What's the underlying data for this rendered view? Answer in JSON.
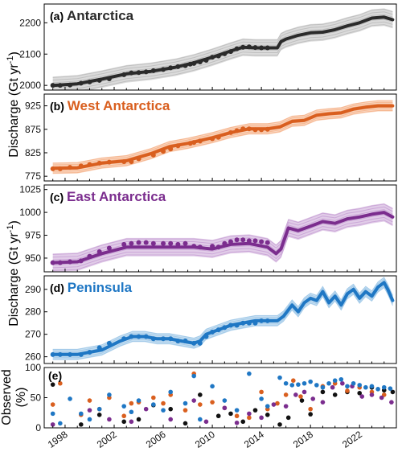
{
  "chart_data": {
    "type": "line",
    "xlim": [
      1996.3,
      2025.0
    ],
    "x_ticks": [
      "1998",
      "2002",
      "2006",
      "2010",
      "2014",
      "2018",
      "2022"
    ],
    "shared_ylabels": [
      {
        "main": "Discharge (Gt yr",
        "sup": "-1",
        "close": ")"
      },
      {
        "main": "Discharge (Gt yr",
        "sup": "-1",
        "close": ")"
      }
    ],
    "panels": [
      {
        "letter": "(a)",
        "title": "Antarctica",
        "color": "#2b2b2b",
        "band_color": "#bdbdbd",
        "ylim": [
          1985,
          2260
        ],
        "yticks": [
          2000,
          2100,
          2200
        ],
        "line": {
          "x": [
            1997.0,
            1999.0,
            2001.0,
            2003.0,
            2005.0,
            2007.0,
            2008.5,
            2010.0,
            2011.5,
            2012.5,
            2013.5,
            2014.5,
            2015.3,
            2015.6,
            2016.0,
            2017.0,
            2018.0,
            2019.0,
            2020.0,
            2021.0,
            2022.0,
            2023.0,
            2024.0,
            2024.7
          ],
          "y": [
            2000,
            2005,
            2020,
            2037,
            2045,
            2058,
            2072,
            2090,
            2110,
            2122,
            2120,
            2120,
            2120,
            2140,
            2148,
            2160,
            2168,
            2170,
            2178,
            2190,
            2200,
            2215,
            2218,
            2210
          ]
        },
        "band_halfwidth": 28,
        "points": {
          "x": [
            1997.0,
            1997.6,
            1998.4,
            1999.3,
            2000.0,
            2000.8,
            2001.6,
            2002.8,
            2003.4,
            2004.0,
            2004.6,
            2005.2,
            2006.0,
            2006.6,
            2007.2,
            2007.8,
            2008.2,
            2008.5,
            2009.0,
            2009.5,
            2010.0,
            2010.5,
            2011.0,
            2011.5,
            2012.0,
            2012.5,
            2013.0,
            2013.5,
            2014.0,
            2014.5
          ],
          "y": [
            2000,
            2000,
            2001,
            2007,
            2011,
            2016,
            2021,
            2034,
            2040,
            2041,
            2043,
            2047,
            2051,
            2056,
            2060,
            2063,
            2068,
            2070,
            2075,
            2080,
            2090,
            2094,
            2101,
            2108,
            2117,
            2122,
            2123,
            2121,
            2120,
            2120
          ]
        }
      },
      {
        "letter": "(b)",
        "title": "West Antarctica",
        "color": "#d95f1f",
        "band_color": "#f5b48c",
        "ylim": [
          765,
          950
        ],
        "yticks": [
          775,
          825,
          875,
          925
        ],
        "line": {
          "x": [
            1997.0,
            1999.0,
            2001.0,
            2003.0,
            2005.0,
            2006.5,
            2008.0,
            2010.0,
            2011.5,
            2013.0,
            2014.5,
            2015.5,
            2016.5,
            2017.5,
            2018.5,
            2019.5,
            2020.5,
            2021.5,
            2022.5,
            2023.5,
            2024.7
          ],
          "y": [
            792,
            793,
            803,
            808,
            823,
            838,
            845,
            857,
            868,
            876,
            876,
            880,
            892,
            894,
            905,
            908,
            910,
            918,
            922,
            925,
            925
          ]
        },
        "band_halfwidth": 12,
        "points": {
          "x": [
            1997.0,
            1997.6,
            1998.4,
            1999.3,
            2000.0,
            2000.8,
            2001.6,
            2002.8,
            2003.4,
            2004.0,
            2005.2,
            2006.0,
            2006.6,
            2007.2,
            2008.2,
            2008.5,
            2009.0,
            2010.0,
            2010.5,
            2011.5,
            2012.0,
            2012.5,
            2013.0,
            2013.5,
            2014.0,
            2014.5
          ],
          "y": [
            791,
            791,
            794,
            797,
            800,
            803,
            805,
            806,
            806,
            812,
            820,
            828,
            833,
            840,
            845,
            847,
            850,
            855,
            858,
            868,
            872,
            876,
            876,
            874,
            874,
            875
          ]
        }
      },
      {
        "letter": "(c)",
        "title": "East Antarctica",
        "color": "#7b2d8e",
        "band_color": "#c9a3d6",
        "ylim": [
          935,
          1030
        ],
        "yticks": [
          950,
          975,
          1000,
          1025
        ],
        "line": {
          "x": [
            1997.0,
            1999.0,
            2001.0,
            2003.0,
            2005.0,
            2007.0,
            2008.5,
            2010.0,
            2011.5,
            2013.0,
            2014.5,
            2015.2,
            2015.6,
            2016.2,
            2017.0,
            2018.0,
            2019.0,
            2020.0,
            2021.0,
            2022.0,
            2023.0,
            2024.0,
            2024.7
          ],
          "y": [
            945,
            946,
            955,
            962,
            962,
            962,
            962,
            960,
            965,
            966,
            962,
            955,
            960,
            983,
            980,
            985,
            990,
            988,
            993,
            995,
            998,
            1000,
            995
          ]
        },
        "band_halfwidth": 10,
        "points": {
          "x": [
            1997.0,
            1997.6,
            1998.4,
            1999.3,
            2000.0,
            2000.8,
            2001.6,
            2002.8,
            2003.4,
            2004.0,
            2004.6,
            2005.2,
            2006.0,
            2006.6,
            2007.2,
            2007.8,
            2008.5,
            2009.0,
            2010.0,
            2010.5,
            2011.0,
            2011.5,
            2012.0,
            2012.5,
            2013.0,
            2013.5,
            2014.0,
            2014.5
          ],
          "y": [
            945,
            945,
            946,
            947,
            952,
            957,
            961,
            965,
            966,
            967,
            967,
            966,
            966,
            966,
            965,
            966,
            963,
            962,
            963,
            962,
            966,
            968,
            970,
            970,
            969,
            969,
            968,
            967
          ]
        }
      },
      {
        "letter": "(d)",
        "title": "Peninsula",
        "color": "#1f77c4",
        "band_color": "#9fc8e8",
        "ylim": [
          257,
          296
        ],
        "yticks": [
          260,
          270,
          280,
          290
        ],
        "line": {
          "x": [
            1997.0,
            1999.0,
            2001.0,
            2002.5,
            2003.5,
            2004.5,
            2005.5,
            2006.5,
            2007.5,
            2008.5,
            2009.0,
            2009.5,
            2010.5,
            2011.5,
            2012.5,
            2013.5,
            2014.5,
            2015.3,
            2015.8,
            2016.5,
            2017.0,
            2017.5,
            2018.0,
            2018.5,
            2019.0,
            2019.5,
            2020.0,
            2020.5,
            2021.0,
            2021.5,
            2022.0,
            2022.5,
            2023.0,
            2023.5,
            2024.0,
            2024.3,
            2024.7
          ],
          "y": [
            261,
            261,
            263,
            267,
            269,
            269,
            268,
            268,
            267,
            266,
            267,
            270,
            272,
            274,
            275,
            276,
            276,
            276,
            278,
            283,
            280,
            284,
            286,
            285,
            289,
            284,
            287,
            283,
            288,
            290,
            286,
            289,
            287,
            291,
            293,
            290,
            285
          ]
        },
        "band_halfwidth": 2.5,
        "points": {
          "x": [
            1997.0,
            1997.6,
            1998.4,
            1999.3,
            2000.0,
            2000.8,
            2001.6,
            2002.8,
            2003.4,
            2004.0,
            2004.6,
            2005.2,
            2006.0,
            2006.6,
            2007.2,
            2007.8,
            2008.5,
            2009.0,
            2009.5,
            2010.0,
            2010.5,
            2011.0,
            2011.5,
            2012.0,
            2012.5,
            2013.0,
            2013.5,
            2014.0,
            2014.5
          ],
          "y": [
            261,
            261,
            261,
            261,
            262,
            264,
            266,
            268,
            269,
            269,
            269,
            268,
            268,
            268,
            267,
            267,
            266,
            266,
            269,
            271,
            272,
            273,
            274,
            274,
            275,
            275,
            275,
            276,
            276
          ]
        }
      }
    ],
    "observed_panel": {
      "letter": "(e)",
      "ylabel": [
        "Observed",
        "(%)"
      ],
      "ylim": [
        0,
        100
      ],
      "yticks": [
        0,
        50,
        100
      ],
      "series": [
        {
          "name": "Antarctica",
          "color": "#111111",
          "x": [
            1997.0,
            1999.3,
            2000.8,
            2002.8,
            2004.0,
            2005.2,
            2006.6,
            2007.8,
            2009.0,
            2010.5,
            2011.5,
            2012.5,
            2013.5,
            2014.5,
            2015.5,
            2016.2,
            2017.3,
            2018.0,
            2019.0,
            2020.0,
            2021.0,
            2022.0,
            2023.0,
            2024.0,
            2024.7
          ],
          "y": [
            73,
            3,
            20,
            8,
            12,
            37,
            30,
            5,
            55,
            18,
            22,
            8,
            28,
            20,
            3,
            15,
            45,
            21,
            60,
            55,
            60,
            58,
            68,
            63,
            60
          ]
        },
        {
          "name": "West Antarctica",
          "color": "#d95f1f",
          "x": [
            1997.0,
            1997.6,
            1999.3,
            2000.0,
            2000.8,
            2001.6,
            2002.8,
            2003.4,
            2004.0,
            2005.2,
            2006.0,
            2006.6,
            2007.8,
            2008.5,
            2009.0,
            2010.0,
            2011.0,
            2012.0,
            2013.0,
            2014.0,
            2014.5,
            2015.3,
            2016.0,
            2016.6,
            2017.2,
            2018.0,
            2019.0,
            2020.0,
            2021.0,
            2022.0,
            2023.0,
            2024.0
          ],
          "y": [
            38,
            75,
            20,
            45,
            30,
            50,
            18,
            40,
            42,
            50,
            40,
            55,
            28,
            92,
            38,
            42,
            32,
            18,
            15,
            60,
            30,
            40,
            55,
            80,
            52,
            30,
            70,
            75,
            62,
            68,
            60,
            55
          ]
        },
        {
          "name": "East Antarctica",
          "color": "#7b2d8e",
          "x": [
            1997.0,
            2000.0,
            2001.6,
            2003.4,
            2004.6,
            2006.6,
            2008.5,
            2009.5,
            2011.0,
            2012.0,
            2013.0,
            2014.0,
            2015.0,
            2016.0,
            2016.8,
            2017.5,
            2018.2,
            2019.0,
            2019.8,
            2020.6,
            2021.4,
            2022.2,
            2023.0,
            2023.8,
            2024.6
          ],
          "y": [
            3,
            28,
            12,
            8,
            30,
            12,
            45,
            8,
            32,
            6,
            22,
            15,
            38,
            35,
            55,
            60,
            48,
            42,
            68,
            75,
            70,
            52,
            55,
            50,
            42
          ]
        },
        {
          "name": "Peninsula",
          "color": "#1f77c4",
          "x": [
            1997.0,
            1997.6,
            1998.4,
            1999.3,
            2000.0,
            2000.8,
            2001.6,
            2002.8,
            2003.4,
            2004.0,
            2005.2,
            2006.0,
            2006.6,
            2007.8,
            2008.5,
            2009.0,
            2010.0,
            2011.0,
            2012.0,
            2013.0,
            2014.0,
            2014.5,
            2015.5,
            2016.0,
            2016.5,
            2017.0,
            2017.5,
            2018.0,
            2018.5,
            2019.0,
            2019.5,
            2020.0,
            2020.5,
            2021.0,
            2021.5,
            2022.0,
            2022.5,
            2023.0,
            2023.5,
            2024.0,
            2024.5
          ],
          "y": [
            22,
            5,
            48,
            22,
            12,
            30,
            55,
            35,
            25,
            45,
            38,
            28,
            60,
            40,
            88,
            12,
            70,
            45,
            28,
            92,
            48,
            35,
            85,
            75,
            72,
            73,
            75,
            78,
            72,
            68,
            75,
            80,
            82,
            70,
            75,
            72,
            68,
            70,
            65,
            68,
            66
          ]
        }
      ]
    }
  }
}
